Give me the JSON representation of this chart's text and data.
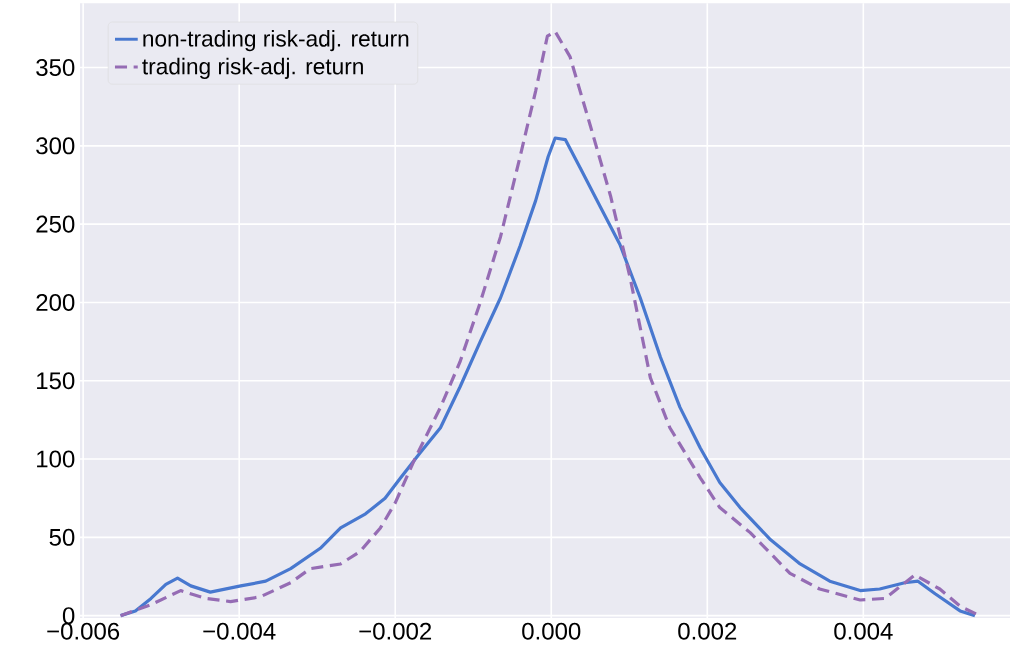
{
  "chart_data": {
    "type": "line",
    "xlim": [
      -0.00604,
      0.00588
    ],
    "ylim": [
      -1.5,
      391
    ],
    "xticks": [
      {
        "value": -0.006,
        "label": "−0.006"
      },
      {
        "value": -0.004,
        "label": "−0.004"
      },
      {
        "value": -0.002,
        "label": "−0.002"
      },
      {
        "value": 0.0,
        "label": "0.000"
      },
      {
        "value": 0.002,
        "label": "0.002"
      },
      {
        "value": 0.004,
        "label": "0.004"
      }
    ],
    "yticks": [
      0,
      50,
      100,
      150,
      200,
      250,
      300,
      350
    ],
    "grid": true,
    "legend": "top left",
    "marker": "none",
    "series": [
      {
        "name": "non-trading risk-adj. return",
        "color": "#4878cf",
        "line_style": "solid",
        "x": [
          -0.00552,
          -0.00533,
          -0.00513,
          -0.00494,
          -0.00479,
          -0.00462,
          -0.00437,
          -0.00398,
          -0.00366,
          -0.00334,
          -0.00296,
          -0.0027,
          -0.00238,
          -0.00213,
          -0.00193,
          -0.00168,
          -0.00142,
          -0.00117,
          -0.00091,
          -0.00065,
          -0.0004,
          -0.0002,
          -4e-05,
          5e-05,
          0.00018,
          0.00037,
          0.00063,
          0.00088,
          0.00114,
          0.0014,
          0.00165,
          0.00191,
          0.00216,
          0.00242,
          0.0028,
          0.00319,
          0.00357,
          0.00396,
          0.00421,
          0.00453,
          0.0047,
          0.00492,
          0.00524,
          0.00543
        ],
        "values": [
          0,
          3,
          11,
          20,
          24,
          19,
          15,
          19,
          22,
          30,
          43,
          56,
          65,
          75,
          88,
          104,
          120,
          146,
          175,
          203,
          236,
          265,
          293,
          305,
          304,
          286,
          261,
          237,
          203,
          165,
          133,
          107,
          85,
          69,
          49,
          33,
          22,
          16,
          17,
          21,
          22,
          14,
          3,
          0
        ]
      },
      {
        "name": "trading risk-adj. return",
        "color": "#956cb4",
        "line_style": "dashed",
        "x": [
          -0.00552,
          -0.00513,
          -0.00475,
          -0.00443,
          -0.00411,
          -0.00373,
          -0.00334,
          -0.00309,
          -0.0027,
          -0.00245,
          -0.00219,
          -0.002,
          -0.00174,
          -0.00142,
          -0.00117,
          -0.00091,
          -0.00065,
          -0.0004,
          -0.0002,
          -5e-05,
          5e-05,
          0.00024,
          0.0005,
          0.00076,
          0.00101,
          0.00127,
          0.00152,
          0.00191,
          0.00216,
          0.00255,
          0.00306,
          0.00344,
          0.00396,
          0.00428,
          0.00466,
          0.00498,
          0.00524,
          0.00549
        ],
        "values": [
          0,
          7,
          16,
          11,
          9,
          12,
          21,
          30,
          33,
          41,
          56,
          72,
          101,
          133,
          162,
          200,
          242,
          293,
          335,
          370,
          373,
          357,
          313,
          268,
          216,
          152,
          120,
          88,
          69,
          53,
          27,
          17,
          10,
          11,
          26,
          17,
          6,
          0
        ]
      }
    ]
  }
}
